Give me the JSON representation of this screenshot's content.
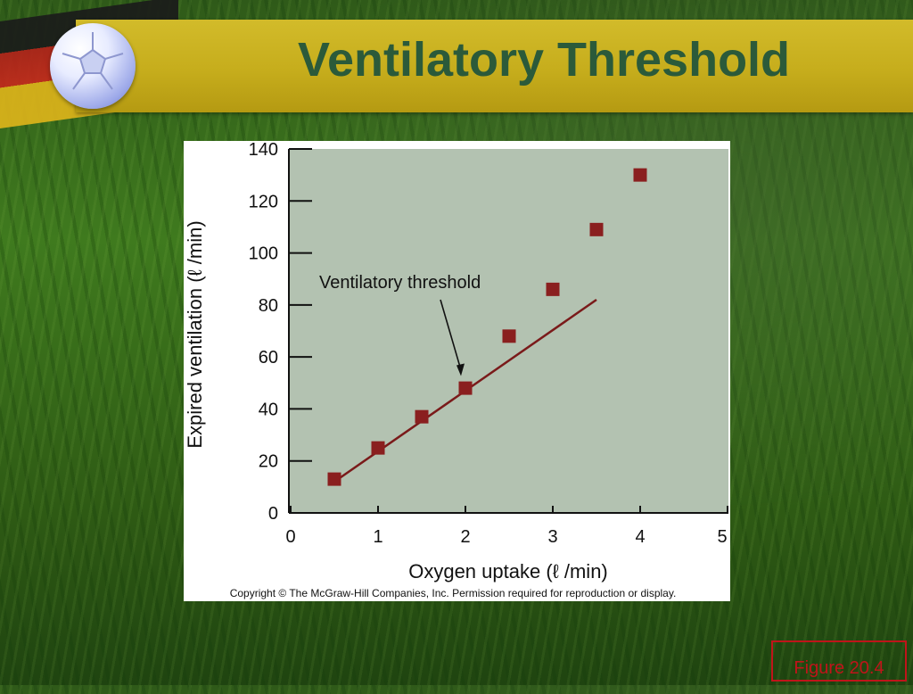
{
  "slide": {
    "title": "Ventilatory Threshold",
    "figure_label": "Figure 20.4",
    "copyright": "Copyright © The McGraw-Hill Companies, Inc. Permission required for reproduction or display."
  },
  "decor": {
    "ball_icon": "soccer-ball-icon",
    "flag": "germany-flag-stripes",
    "banner_color": "#c6ad1c",
    "title_color": "#2b5a3a"
  },
  "chart_data": {
    "type": "scatter",
    "title": "",
    "xlabel": "Oxygen uptake (ℓ /min)",
    "ylabel": "Expired ventilation (ℓ /min)",
    "xlim": [
      0,
      5
    ],
    "ylim": [
      0,
      140
    ],
    "x_ticks": [
      0,
      1,
      2,
      3,
      4,
      5
    ],
    "y_ticks": [
      0,
      20,
      40,
      60,
      80,
      100,
      120,
      140
    ],
    "grid": false,
    "background": "#b3c2b1",
    "marker_color": "#8a1f1f",
    "series": [
      {
        "x": [
          0.5,
          1.0,
          1.5,
          2.0,
          2.5,
          3.0,
          3.5,
          4.0
        ],
        "y": [
          13,
          25,
          37,
          48,
          68,
          86,
          109,
          130
        ]
      }
    ],
    "trend_line": {
      "x": [
        0.5,
        3.5
      ],
      "y": [
        12,
        82
      ]
    },
    "annotation": {
      "text": "Ventilatory threshold",
      "points_to": {
        "x": 2.0,
        "y": 52
      }
    }
  }
}
